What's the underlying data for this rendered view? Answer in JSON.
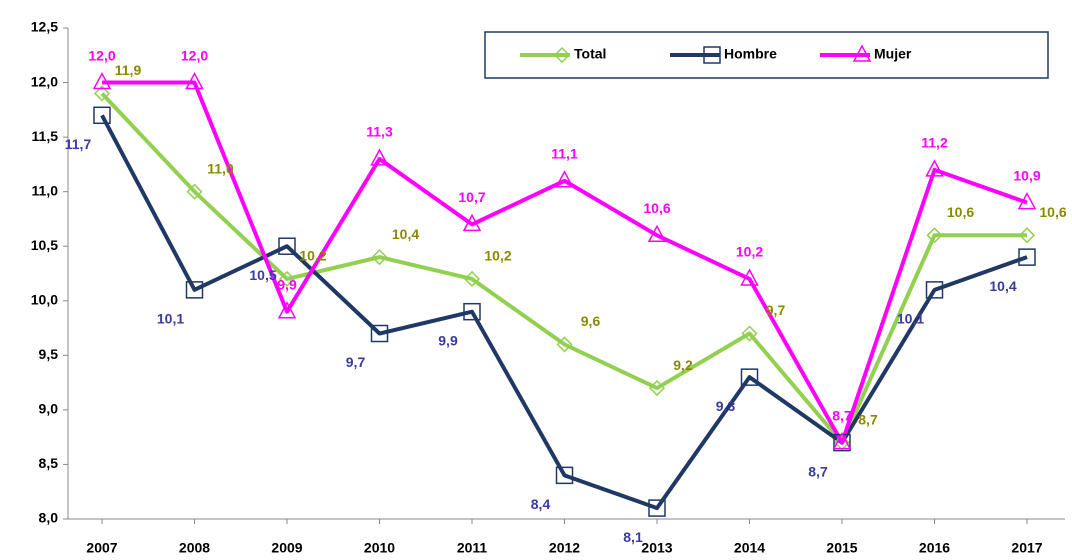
{
  "chart_data": {
    "type": "line",
    "categories": [
      "2007",
      "2008",
      "2009",
      "2010",
      "2011",
      "2012",
      "2013",
      "2014",
      "2015",
      "2016",
      "2017"
    ],
    "series": [
      {
        "name": "Total",
        "color": "#92d050",
        "label_color": "#8a8a00",
        "marker": "diamond",
        "values": [
          11.9,
          11.0,
          10.2,
          10.4,
          10.2,
          9.6,
          9.2,
          9.7,
          8.7,
          10.6,
          10.6
        ],
        "value_labels": [
          "11,9",
          "11,0",
          "10,2",
          "10,4",
          "10,2",
          "9,6",
          "9,2",
          "9,7",
          "8,7",
          "10,6",
          "10,6"
        ]
      },
      {
        "name": "Hombre",
        "color": "#203864",
        "label_color": "#3a3aa0",
        "marker": "square",
        "values": [
          11.7,
          10.1,
          10.5,
          9.7,
          9.9,
          8.4,
          8.1,
          9.3,
          8.7,
          10.1,
          10.4
        ],
        "value_labels": [
          "11,7",
          "10,1",
          "10,5",
          "9,7",
          "9,9",
          "8,4",
          "8,1",
          "9,3",
          "8,7",
          "10,1",
          "10,4"
        ]
      },
      {
        "name": "Mujer",
        "color": "#ff00ff",
        "label_color": "#ff00ff",
        "marker": "triangle",
        "values": [
          12.0,
          12.0,
          9.9,
          11.3,
          10.7,
          11.1,
          10.6,
          10.2,
          8.7,
          11.2,
          10.9
        ],
        "value_labels": [
          "12,0",
          "12,0",
          "9,9",
          "11,3",
          "10,7",
          "11,1",
          "10,6",
          "10,2",
          "8,7",
          "11,2",
          "10,9"
        ]
      }
    ],
    "ylim": [
      8.0,
      12.5
    ],
    "yticks": [
      {
        "value": 8.0,
        "label": "8,0"
      },
      {
        "value": 8.5,
        "label": "8,5"
      },
      {
        "value": 9.0,
        "label": "9,0"
      },
      {
        "value": 9.5,
        "label": "9,5"
      },
      {
        "value": 10.0,
        "label": "10,0"
      },
      {
        "value": 10.5,
        "label": "10,5"
      },
      {
        "value": 11.0,
        "label": "11,0"
      },
      {
        "value": 11.5,
        "label": "11,5"
      },
      {
        "value": 12.0,
        "label": "12,0"
      },
      {
        "value": 12.5,
        "label": "12,5"
      }
    ],
    "grid": false,
    "legend": "top-right"
  }
}
